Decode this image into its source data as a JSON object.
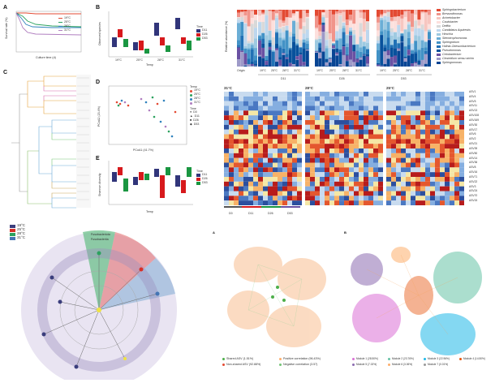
{
  "panels": {
    "A": {
      "label": "A",
      "ylabel": "Survival rate (%)",
      "xlabel": "Culture time (d)",
      "series": [
        {
          "name": "19°C",
          "color": "#e34a33"
        },
        {
          "name": "25°C",
          "color": "#2ca25f"
        },
        {
          "name": "28°C",
          "color": "#3182bd"
        },
        {
          "name": "31°C",
          "color": "#b07fc0"
        }
      ]
    },
    "B": {
      "label": "B",
      "ylabel": "Observed species",
      "xlabel": "Temp",
      "temps": [
        "19°C",
        "25°C",
        "28°C",
        "31°C"
      ],
      "legend_title": "Time",
      "legend": [
        {
          "name": "D11",
          "color": "#31357a"
        },
        {
          "name": "D26",
          "color": "#d7191c"
        },
        {
          "name": "D53",
          "color": "#1a9641"
        }
      ]
    },
    "C": {
      "label": "C"
    },
    "D": {
      "label": "D",
      "xlabel": "PCoA1 (41.7%)",
      "ylabel": "PCoA2 (23.4%)",
      "temp_title": "Temp",
      "temp_legend": [
        {
          "name": "19°C",
          "color": "#e34a33"
        },
        {
          "name": "25°C",
          "color": "#2ca25f"
        },
        {
          "name": "28°C",
          "color": "#3182bd"
        },
        {
          "name": "31°C",
          "color": "#b07fc0"
        }
      ],
      "time_title": "Time",
      "time_legend": [
        "D0",
        "D11",
        "D26",
        "D53"
      ]
    },
    "E": {
      "label": "E",
      "ylabel": "Shannon diversity",
      "xlabel": "Temp",
      "legend_title": "Time",
      "legend": [
        {
          "name": "D11",
          "color": "#31357a"
        },
        {
          "name": "D26",
          "color": "#d7191c"
        },
        {
          "name": "D53",
          "color": "#1a9641"
        }
      ]
    },
    "F": {
      "ylabel": "Relative abundance (%)",
      "x_groups": [
        "Origin",
        "19°C",
        "25°C",
        "28°C",
        "31°C",
        "19°C",
        "25°C",
        "28°C",
        "31°C",
        "19°C",
        "25°C",
        "28°C",
        "31°C"
      ],
      "days": [
        "D11",
        "D26",
        "D53"
      ],
      "legend": [
        {
          "name": "Sphingobacterium",
          "color": "#e34a33"
        },
        {
          "name": "Brevundimonas",
          "color": "#f1948a"
        },
        {
          "name": "Acinetobacter",
          "color": "#f7c6c0"
        },
        {
          "name": "Caulobacter",
          "color": "#fde0dd"
        },
        {
          "name": "Delftia",
          "color": "#d9d9d9"
        },
        {
          "name": "Candidatus Aquirestis",
          "color": "#bdd7ee"
        },
        {
          "name": "Hirschia",
          "color": "#9ecae1"
        },
        {
          "name": "Stenotrophomonas",
          "color": "#6baed6"
        },
        {
          "name": "Sphingobium",
          "color": "#4292c6"
        },
        {
          "name": "Hafnia-Obesumbacterium",
          "color": "#2171b5"
        },
        {
          "name": "Pseudomonas",
          "color": "#08519c"
        },
        {
          "name": "Cetobacterium",
          "color": "#6a51a3"
        },
        {
          "name": "Clostridium sensu stricto",
          "color": "#9e9ac8"
        },
        {
          "name": "Sphingomonas",
          "color": "#084594"
        }
      ]
    },
    "G": {
      "sections": [
        "31°C",
        "28°C",
        "25°C"
      ],
      "x_labels": [
        "D0",
        "D11",
        "D26",
        "D53"
      ],
      "row_labels": [
        "ASV1",
        "ASV4",
        "ASV5",
        "ASV11",
        "ASV13",
        "ASV108",
        "ASV169",
        "ASV30",
        "ASV17",
        "ASV6",
        "ASV2",
        "ASV21",
        "ASV39",
        "ASV50",
        "ASV14",
        "ASV36",
        "ASV8",
        "ASV16",
        "ASV71",
        "ASV22",
        "ASV3",
        "ASV24",
        "ASV70",
        "ASV15"
      ]
    },
    "H": {
      "legend": [
        {
          "name": "19°C",
          "color": "#3a3d7c"
        },
        {
          "name": "25°C",
          "color": "#d73027"
        },
        {
          "name": "28°C",
          "color": "#2ca25f"
        },
        {
          "name": "31°C",
          "color": "#4575b4"
        }
      ],
      "clade_labels": [
        "Fusobacteriota",
        "Fusobacteriia"
      ]
    },
    "I": {
      "label": "A",
      "legend": [
        {
          "name": "Shared ASV (1.51%)",
          "color": "#4daf4a"
        },
        {
          "name": "Positive correlation (96.43%)",
          "color": "#fdae6b"
        },
        {
          "name": "Non-shared ASV (92.88%)",
          "color": "#e34a33"
        },
        {
          "name": "Negative correlation (3.57)",
          "color": "#74c476"
        }
      ]
    },
    "J": {
      "label": "B",
      "legend": [
        {
          "name": "Module 1 (28.50%)",
          "color": "#da70d6"
        },
        {
          "name": "Module 2 (23.76%)",
          "color": "#66c2a5"
        },
        {
          "name": "Module 3 (22.96%)",
          "color": "#1fb8e8"
        },
        {
          "name": "Module 4 (14.50%)",
          "color": "#e6550d"
        },
        {
          "name": "Module 5 (7.02%)",
          "color": "#8c6bb1"
        },
        {
          "name": "Module 6 (3.06%)",
          "color": "#fdae6b"
        },
        {
          "name": "Module 7 (0.01%)",
          "color": "#999999"
        }
      ]
    }
  }
}
